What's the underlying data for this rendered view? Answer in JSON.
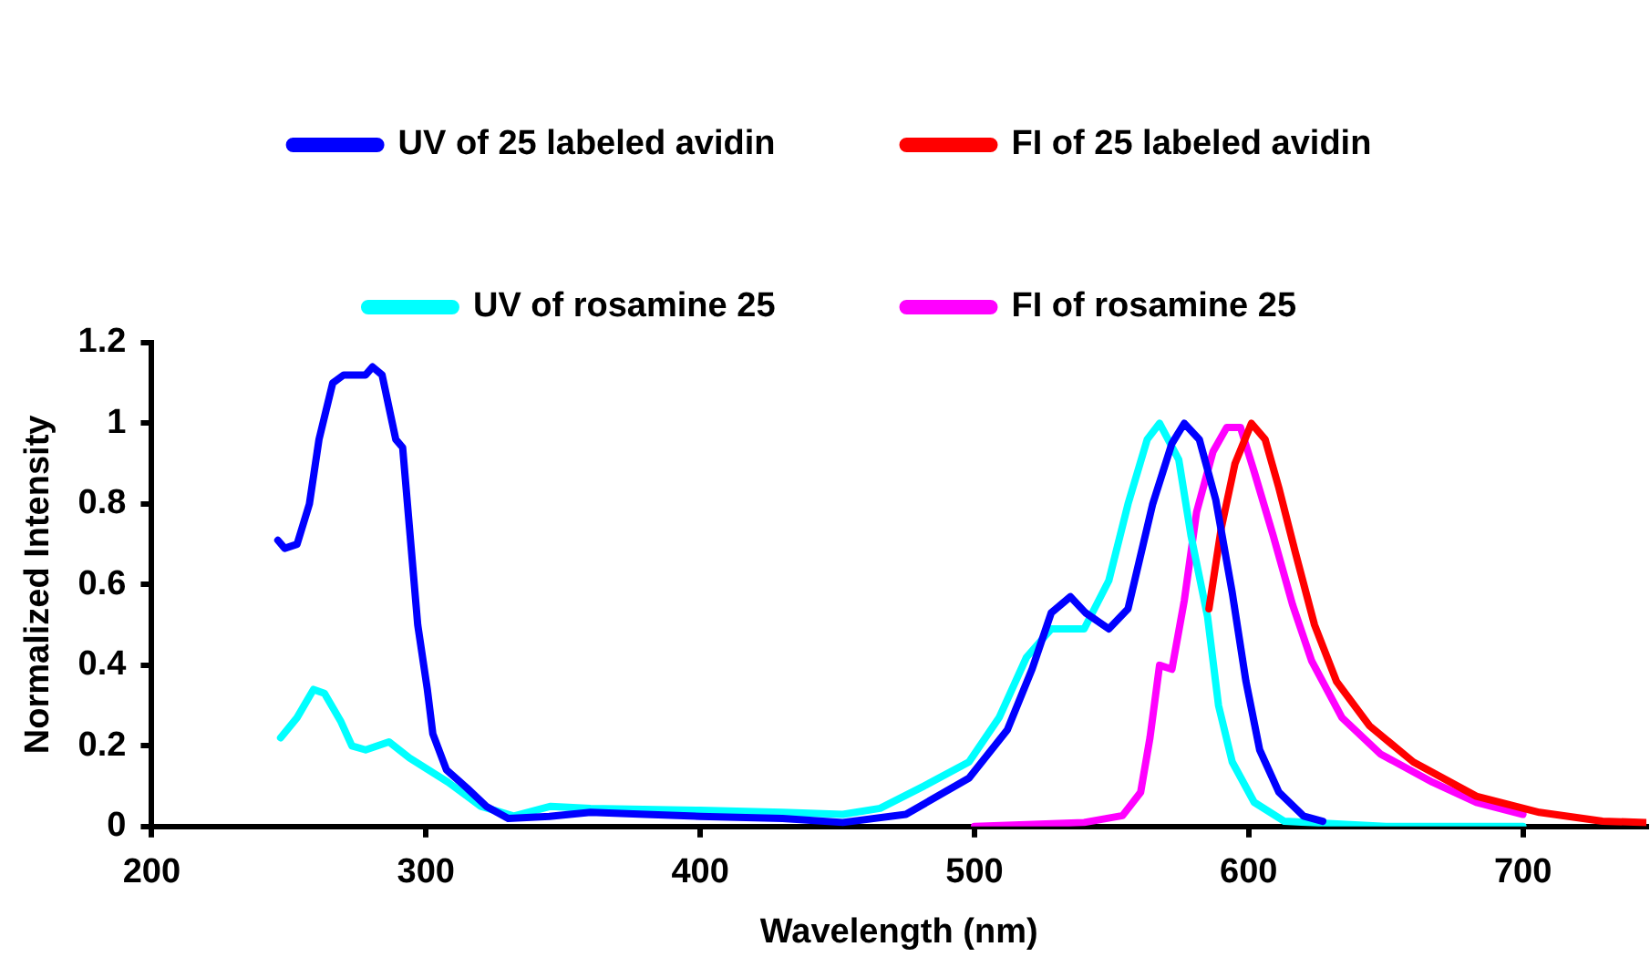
{
  "chart_data": {
    "type": "line",
    "xlabel": "Wavelength (nm)",
    "ylabel": "Normalized Intensity",
    "xlim": [
      200,
      745
    ],
    "xticks": [
      200,
      300,
      400,
      500,
      600,
      700
    ],
    "ylim": [
      0,
      1.2
    ],
    "yticks": [
      0,
      0.2,
      0.4,
      0.6,
      0.8,
      1,
      1.2
    ],
    "grid": false,
    "legend": "top",
    "marker": "none",
    "line_style": "solid",
    "series": [
      {
        "name": "UV of 25 labeled avidin",
        "color": "#0000ff",
        "x": [
          246,
          248.5,
          253,
          257.5,
          261,
          266,
          270,
          278,
          280.5,
          284,
          289,
          291.5,
          294,
          297,
          300.5,
          302.5,
          307.5,
          315,
          322,
          330,
          345,
          360,
          380,
          400,
          430,
          452,
          475,
          498,
          512,
          521,
          528,
          535,
          540.5,
          549,
          556,
          565,
          572,
          576.5,
          582,
          588,
          594,
          599,
          604,
          611,
          620,
          627
        ],
        "values": [
          0.71,
          0.69,
          0.7,
          0.8,
          0.96,
          1.1,
          1.12,
          1.12,
          1.14,
          1.12,
          0.96,
          0.94,
          0.74,
          0.5,
          0.34,
          0.23,
          0.14,
          0.095,
          0.05,
          0.02,
          0.025,
          0.035,
          0.03,
          0.025,
          0.02,
          0.01,
          0.03,
          0.12,
          0.24,
          0.39,
          0.53,
          0.57,
          0.53,
          0.49,
          0.54,
          0.8,
          0.95,
          1,
          0.96,
          0.81,
          0.58,
          0.36,
          0.19,
          0.085,
          0.026,
          0.013
        ]
      },
      {
        "name": "FI of 25 labeled avidin",
        "color": "#ff0000",
        "x": [
          585.5,
          590,
          595,
          601,
          606,
          611,
          617,
          624,
          632,
          644,
          660,
          683,
          706,
          729,
          745
        ],
        "values": [
          0.54,
          0.74,
          0.9,
          1,
          0.96,
          0.84,
          0.68,
          0.5,
          0.36,
          0.25,
          0.16,
          0.075,
          0.035,
          0.013,
          0.01
        ]
      },
      {
        "name": "UV of rosamine 25",
        "color": "#00ffff",
        "x": [
          247,
          253,
          259,
          263,
          269,
          273,
          278,
          286.5,
          294,
          308,
          320,
          332,
          345.5,
          360,
          400,
          430,
          452,
          465.6,
          481.5,
          498,
          509,
          519,
          528,
          540,
          549,
          556,
          563,
          567.5,
          574.5,
          579,
          585,
          589,
          594,
          602,
          613,
          650,
          700
        ],
        "values": [
          0.22,
          0.27,
          0.34,
          0.33,
          0.26,
          0.2,
          0.19,
          0.21,
          0.17,
          0.11,
          0.05,
          0.026,
          0.05,
          0.045,
          0.04,
          0.035,
          0.03,
          0.045,
          0.1,
          0.16,
          0.27,
          0.42,
          0.49,
          0.49,
          0.61,
          0.8,
          0.96,
          1,
          0.91,
          0.72,
          0.52,
          0.3,
          0.16,
          0.06,
          0.013,
          0,
          0
        ]
      },
      {
        "name": "FI of rosamine 25",
        "color": "#ff00ff",
        "x": [
          500,
          540,
          554,
          560.6,
          564,
          567.5,
          572,
          576.5,
          581,
          587,
          592,
          597,
          602,
          609,
          616,
          623,
          634,
          648,
          667,
          683,
          700
        ],
        "values": [
          0,
          0.01,
          0.027,
          0.085,
          0.22,
          0.4,
          0.39,
          0.56,
          0.78,
          0.93,
          0.99,
          0.99,
          0.88,
          0.72,
          0.55,
          0.41,
          0.27,
          0.18,
          0.11,
          0.06,
          0.03
        ]
      }
    ]
  }
}
